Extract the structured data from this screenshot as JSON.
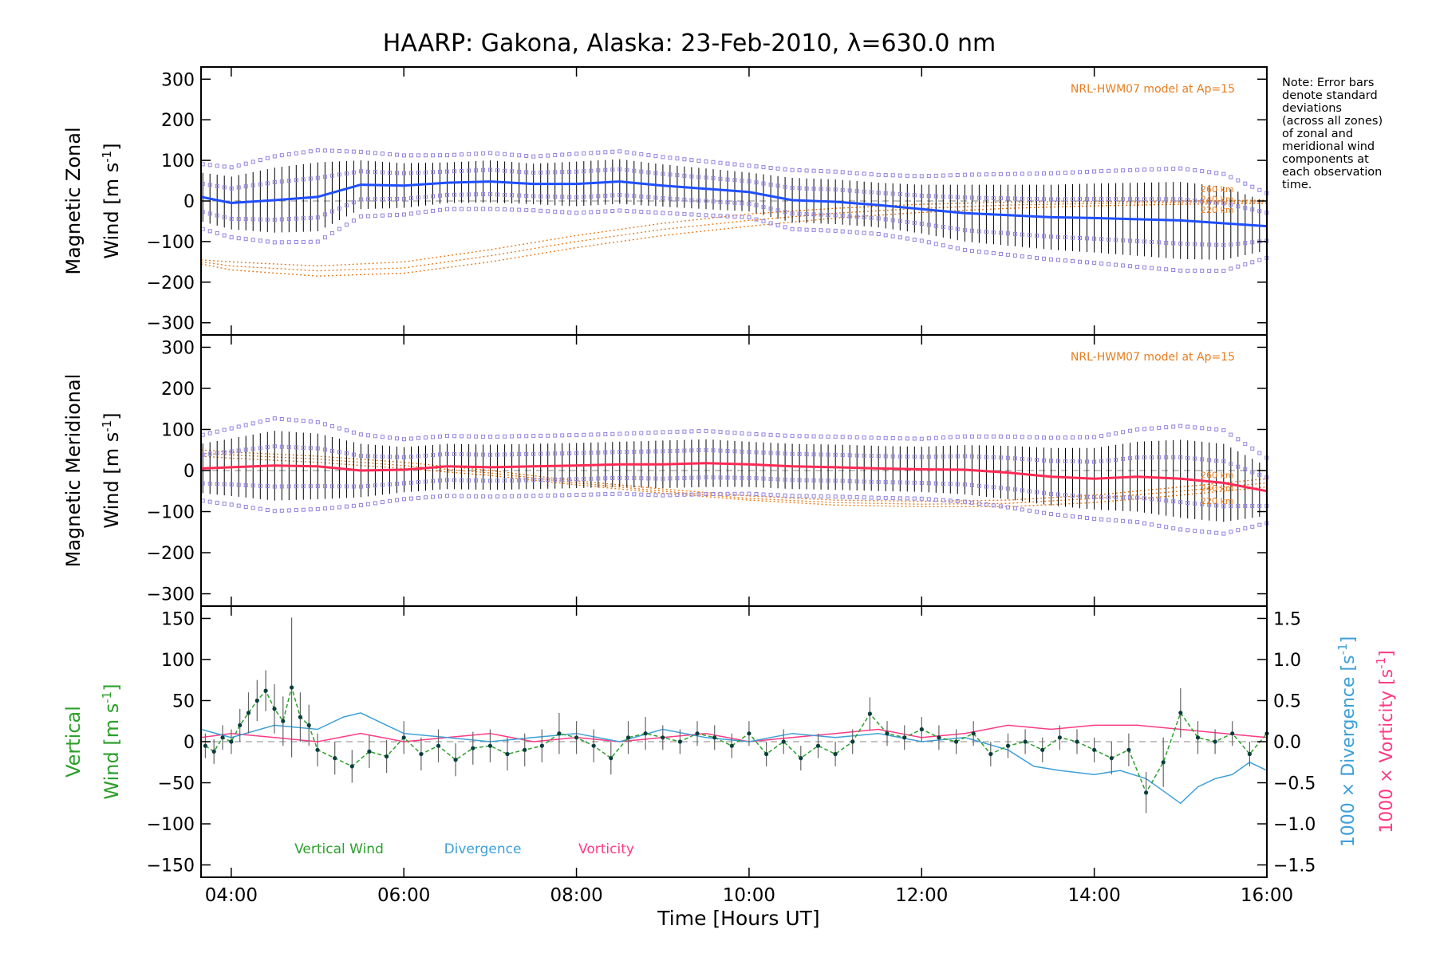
{
  "title": "HAARP: Gakona,  Alaska: 23-Feb-2010, λ=630.0 nm",
  "note_lines": [
    "Note: Error bars",
    "denote standard",
    "deviations",
    "(across all zones)",
    "of zonal and",
    "meridional wind",
    "components at",
    "each observation",
    "time."
  ],
  "x_axis": {
    "label": "Time [Hours UT]",
    "ticks": [
      "04:00",
      "06:00",
      "08:00",
      "10:00",
      "12:00",
      "14:00",
      "16:00"
    ],
    "tick_values_hours": [
      4,
      6,
      8,
      10,
      12,
      14,
      16
    ],
    "range_hours": [
      3.65,
      16.0
    ]
  },
  "colors": {
    "zonal_mean": "#1f4fff",
    "meridional_mean": "#ff2a55",
    "vertical": "#2ca02c",
    "divergence": "#3da0d8",
    "vorticity": "#ff3a84",
    "model": "#e87d1e",
    "zone_points": "#8f83e0",
    "error_bars": "#000000"
  },
  "chart_data": [
    {
      "type": "line",
      "panel": "zonal",
      "ylabel_line1": "Magnetic Zonal",
      "ylabel_line2": "Wind [m s",
      "ylabel_sup": "-1",
      "ylabel_close": "]",
      "y_ticks": [
        "300",
        "200",
        "100",
        "0",
        "−100",
        "−200",
        "−300"
      ],
      "y_tick_values": [
        300,
        200,
        100,
        0,
        -100,
        -200,
        -300
      ],
      "ylim": [
        -330,
        330
      ],
      "model_label": "NRL-HWM07 model at Ap=15",
      "model_altitude_labels": [
        "260 km",
        "240 km",
        "220 km"
      ],
      "series": [
        {
          "x": [
            3.65,
            4.0,
            4.5,
            5.0,
            5.5,
            6.0,
            6.5,
            7.0,
            7.5,
            8.0,
            8.5,
            9.0,
            9.5,
            10.0,
            10.5,
            11.0,
            11.5,
            12.0,
            12.5,
            13.0,
            13.5,
            14.0,
            14.5,
            15.0,
            15.5,
            16.0
          ],
          "y": [
            10,
            -5,
            2,
            10,
            40,
            38,
            45,
            48,
            42,
            42,
            48,
            38,
            30,
            22,
            2,
            -2,
            -10,
            -20,
            -30,
            -35,
            -40,
            -42,
            -45,
            -48,
            -55,
            -62
          ],
          "error": [
            60,
            65,
            80,
            85,
            60,
            55,
            50,
            52,
            50,
            55,
            55,
            52,
            50,
            48,
            55,
            55,
            55,
            60,
            70,
            75,
            80,
            85,
            90,
            95,
            90,
            60
          ]
        },
        {
          "label": "model 260 km",
          "x": [
            3.65,
            4.0,
            5.0,
            6.0,
            7.0,
            8.0,
            9.0,
            10.0,
            11.0,
            12.0,
            13.0,
            14.0,
            15.0,
            16.0
          ],
          "y": [
            -145,
            -150,
            -160,
            -150,
            -120,
            -85,
            -55,
            -32,
            -18,
            -8,
            -3,
            -1,
            0,
            2
          ]
        },
        {
          "label": "model 240 km",
          "x": [
            3.65,
            4.0,
            5.0,
            6.0,
            7.0,
            8.0,
            9.0,
            10.0,
            11.0,
            12.0,
            13.0,
            14.0,
            15.0,
            16.0
          ],
          "y": [
            -150,
            -160,
            -172,
            -165,
            -135,
            -100,
            -70,
            -48,
            -30,
            -18,
            -10,
            -6,
            -3,
            -2
          ]
        },
        {
          "label": "model 220 km",
          "x": [
            3.65,
            4.0,
            5.0,
            6.0,
            7.0,
            8.0,
            9.0,
            10.0,
            11.0,
            12.0,
            13.0,
            14.0,
            15.0,
            16.0
          ],
          "y": [
            -155,
            -170,
            -185,
            -178,
            -150,
            -115,
            -85,
            -62,
            -42,
            -28,
            -18,
            -12,
            -8,
            -6
          ]
        }
      ]
    },
    {
      "type": "line",
      "panel": "meridional",
      "ylabel_line1": "Magnetic Meridional",
      "ylabel_line2": "Wind [m s",
      "ylabel_sup": "-1",
      "ylabel_close": "]",
      "y_ticks": [
        "300",
        "200",
        "100",
        "0",
        "−100",
        "−200",
        "−300"
      ],
      "y_tick_values": [
        300,
        200,
        100,
        0,
        -100,
        -200,
        -300
      ],
      "ylim": [
        -330,
        330
      ],
      "model_label": "NRL-HWM07 model at Ap=15",
      "model_altitude_labels": [
        "260 km",
        "240 km",
        "220 km"
      ],
      "series": [
        {
          "x": [
            3.65,
            4.0,
            4.5,
            5.0,
            5.5,
            6.0,
            6.5,
            7.0,
            7.5,
            8.0,
            8.5,
            9.0,
            9.5,
            10.0,
            10.5,
            11.0,
            11.5,
            12.0,
            12.5,
            13.0,
            13.5,
            14.0,
            14.5,
            15.0,
            15.5,
            16.0
          ],
          "y": [
            5,
            8,
            12,
            10,
            0,
            2,
            10,
            8,
            10,
            12,
            15,
            15,
            18,
            15,
            10,
            8,
            5,
            3,
            2,
            -5,
            -15,
            -20,
            -15,
            -20,
            -30,
            -50
          ],
          "error": [
            60,
            70,
            85,
            80,
            65,
            55,
            55,
            55,
            55,
            55,
            55,
            58,
            58,
            55,
            55,
            55,
            55,
            55,
            60,
            65,
            70,
            75,
            85,
            95,
            95,
            60
          ]
        },
        {
          "label": "model 260 km",
          "x": [
            3.65,
            4.0,
            5.0,
            6.0,
            7.0,
            8.0,
            9.0,
            10.0,
            11.0,
            12.0,
            13.0,
            14.0,
            15.0,
            16.0
          ],
          "y": [
            50,
            45,
            35,
            20,
            0,
            -25,
            -45,
            -62,
            -72,
            -75,
            -72,
            -60,
            -40,
            -20
          ]
        },
        {
          "label": "model 240 km",
          "x": [
            3.65,
            4.0,
            5.0,
            6.0,
            7.0,
            8.0,
            9.0,
            10.0,
            11.0,
            12.0,
            13.0,
            14.0,
            15.0,
            16.0
          ],
          "y": [
            42,
            38,
            28,
            12,
            -6,
            -30,
            -50,
            -68,
            -78,
            -82,
            -80,
            -68,
            -50,
            -30
          ]
        },
        {
          "label": "model 220 km",
          "x": [
            3.65,
            4.0,
            5.0,
            6.0,
            7.0,
            8.0,
            9.0,
            10.0,
            11.0,
            12.0,
            13.0,
            14.0,
            15.0,
            16.0
          ],
          "y": [
            35,
            30,
            20,
            5,
            -12,
            -35,
            -55,
            -72,
            -84,
            -88,
            -88,
            -78,
            -60,
            -40
          ]
        }
      ]
    },
    {
      "type": "line",
      "panel": "vertical",
      "ylabel_line1": "Vertical",
      "ylabel_line2": "Wind [m s",
      "ylabel_sup": "-1",
      "ylabel_close": "]",
      "y_ticks": [
        "150",
        "100",
        "50",
        "0",
        "−50",
        "−100",
        "−150"
      ],
      "y_tick_values": [
        150,
        100,
        50,
        0,
        -50,
        -100,
        -150
      ],
      "ylim": [
        -165,
        165
      ],
      "right_ticks": [
        "1.5",
        "1.0",
        "0.5",
        "0.0",
        "−0.5",
        "−1.0",
        "−1.5"
      ],
      "right_tick_values": [
        1.5,
        1.0,
        0.5,
        0.0,
        -0.5,
        -1.0,
        -1.5
      ],
      "right_ylim": [
        -1.65,
        1.65
      ],
      "right_label_div": "1000 × Divergence [s",
      "right_label_vort": "1000 × Vorticity [s",
      "right_label_sup": "-1",
      "right_label_close": "]",
      "legend": [
        "Vertical Wind",
        "Divergence",
        "Vorticity"
      ],
      "series": [
        {
          "name": "Vertical Wind",
          "x": [
            3.7,
            3.8,
            3.9,
            4.0,
            4.1,
            4.2,
            4.3,
            4.4,
            4.5,
            4.6,
            4.7,
            4.8,
            4.9,
            5.0,
            5.2,
            5.4,
            5.6,
            5.8,
            6.0,
            6.2,
            6.4,
            6.6,
            6.8,
            7.0,
            7.2,
            7.4,
            7.6,
            7.8,
            8.0,
            8.2,
            8.4,
            8.6,
            8.8,
            9.0,
            9.2,
            9.4,
            9.6,
            9.8,
            10.0,
            10.2,
            10.4,
            10.6,
            10.8,
            11.0,
            11.2,
            11.4,
            11.6,
            11.8,
            12.0,
            12.2,
            12.4,
            12.6,
            12.8,
            13.0,
            13.2,
            13.4,
            13.6,
            13.8,
            14.0,
            14.2,
            14.4,
            14.6,
            14.8,
            15.0,
            15.2,
            15.4,
            15.6,
            15.8,
            16.0
          ],
          "y": [
            -5,
            -12,
            5,
            0,
            20,
            35,
            50,
            62,
            40,
            25,
            66,
            30,
            20,
            -10,
            -20,
            -30,
            -12,
            -18,
            5,
            -15,
            -5,
            -22,
            -8,
            -5,
            -15,
            -10,
            -5,
            10,
            5,
            -5,
            -20,
            5,
            10,
            5,
            0,
            10,
            5,
            -5,
            10,
            -15,
            0,
            -20,
            -5,
            -15,
            0,
            34,
            10,
            5,
            15,
            5,
            0,
            10,
            -15,
            -5,
            0,
            -10,
            5,
            0,
            -10,
            -20,
            -10,
            -62,
            -25,
            35,
            5,
            0,
            10,
            -15,
            10
          ],
          "error": [
            15,
            15,
            15,
            15,
            20,
            25,
            25,
            25,
            30,
            30,
            85,
            30,
            25,
            20,
            20,
            20,
            20,
            20,
            20,
            20,
            20,
            20,
            20,
            20,
            20,
            20,
            20,
            25,
            20,
            20,
            20,
            20,
            20,
            15,
            15,
            15,
            15,
            15,
            15,
            15,
            15,
            15,
            15,
            15,
            15,
            20,
            15,
            15,
            15,
            15,
            15,
            15,
            15,
            15,
            15,
            15,
            15,
            15,
            15,
            20,
            20,
            25,
            30,
            30,
            20,
            15,
            15,
            15,
            15
          ]
        },
        {
          "name": "Divergence",
          "x": [
            3.65,
            4.0,
            4.5,
            5.0,
            5.3,
            5.5,
            5.8,
            6.0,
            6.5,
            7.0,
            7.5,
            8.0,
            8.5,
            9.0,
            9.5,
            10.0,
            10.5,
            11.0,
            11.5,
            12.0,
            12.5,
            13.0,
            13.3,
            13.6,
            14.0,
            14.3,
            14.6,
            14.8,
            15.0,
            15.2,
            15.4,
            15.6,
            15.8,
            16.0
          ],
          "y": [
            0.15,
            0.05,
            0.2,
            0.15,
            0.3,
            0.35,
            0.2,
            0.1,
            0.05,
            0.0,
            0.05,
            0.1,
            0.0,
            0.15,
            0.05,
            0.0,
            0.1,
            0.05,
            0.1,
            0.0,
            0.05,
            -0.1,
            -0.3,
            -0.35,
            -0.4,
            -0.35,
            -0.45,
            -0.6,
            -0.75,
            -0.55,
            -0.45,
            -0.4,
            -0.25,
            -0.35
          ]
        },
        {
          "name": "Vorticity",
          "x": [
            3.65,
            4.0,
            4.5,
            5.0,
            5.5,
            6.0,
            6.5,
            7.0,
            7.5,
            8.0,
            8.5,
            9.0,
            9.5,
            10.0,
            10.5,
            11.0,
            11.5,
            12.0,
            12.5,
            13.0,
            13.5,
            14.0,
            14.5,
            15.0,
            15.5,
            16.0
          ],
          "y": [
            0.05,
            0.1,
            0.05,
            0.0,
            0.1,
            0.0,
            0.05,
            0.1,
            0.0,
            0.05,
            0.0,
            0.05,
            0.1,
            0.0,
            0.05,
            0.1,
            0.15,
            0.05,
            0.1,
            0.2,
            0.15,
            0.2,
            0.2,
            0.15,
            0.1,
            0.05
          ]
        }
      ]
    }
  ]
}
